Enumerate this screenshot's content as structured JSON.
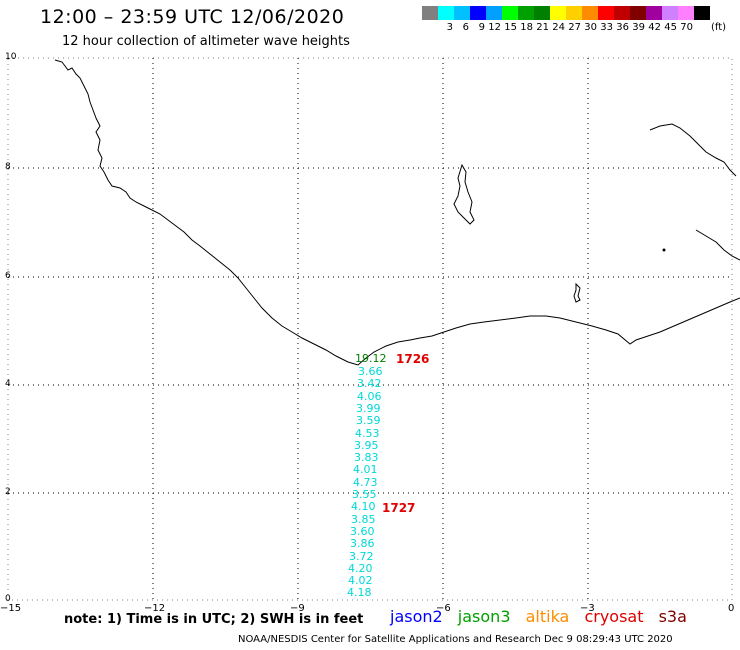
{
  "header": {
    "title": "12:00 – 23:59 UTC 12/06/2020",
    "subtitle": "12 hour collection of altimeter wave heights"
  },
  "legend": {
    "colors": [
      "#808080",
      "#00ffff",
      "#00c0ff",
      "#0000ff",
      "#00a0ff",
      "#00ff00",
      "#00a000",
      "#008000",
      "#ffff00",
      "#ffd000",
      "#ff8c00",
      "#ff0000",
      "#c00000",
      "#800000",
      "#a000a0",
      "#d080ff",
      "#ff80ff",
      "#000000"
    ],
    "labels": [
      "3",
      "6",
      "9",
      "12",
      "15",
      "18",
      "21",
      "24",
      "27",
      "30",
      "33",
      "36",
      "39",
      "42",
      "45",
      "70"
    ],
    "unit": "(ft)"
  },
  "axes": {
    "y_ticks": [
      "10",
      "8",
      "6",
      "4",
      "2",
      "0"
    ],
    "x_ticks": [
      "−15",
      "−12",
      "−9",
      "−6",
      "−3",
      "0"
    ]
  },
  "observations": {
    "first": "19.12",
    "values": [
      "3.66",
      "3.42",
      "4.06",
      "3.99",
      "3.59",
      "4.53",
      "3.95",
      "3.83",
      "4.01",
      "4.73",
      "3.55",
      "4.10",
      "3.85",
      "3.60",
      "3.86",
      "3.72",
      "4.20",
      "4.02",
      "4.18"
    ]
  },
  "passes": [
    "1726",
    "1727"
  ],
  "note": "note: 1) Time is in UTC; 2) SWH is in feet",
  "satellites": [
    {
      "name": "jason2",
      "color": "#0000ff"
    },
    {
      "name": "jason3",
      "color": "#00a000"
    },
    {
      "name": "altika",
      "color": "#ff8c00"
    },
    {
      "name": "cryosat",
      "color": "#e00000"
    },
    {
      "name": "s3a",
      "color": "#800000"
    }
  ],
  "footer": "NOAA/NESDIS Center for Satellite Applications and Research   Dec  9 08:29:43 UTC 2020",
  "colors": {
    "observation": "#00d8d8",
    "observation_first": "#008000",
    "pass": "#e00000"
  }
}
